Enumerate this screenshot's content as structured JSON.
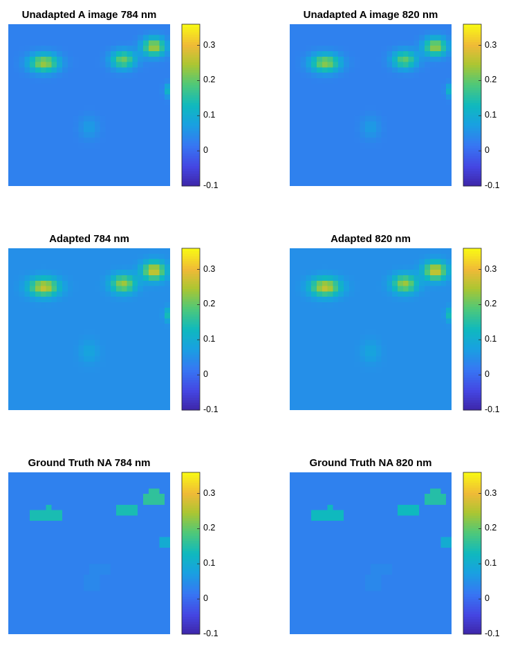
{
  "chart_data": [
    {
      "type": "heatmap",
      "title": "Unadapted A image 784 nm",
      "colormap": "parula",
      "clim": [
        -0.1,
        0.36
      ],
      "colorbar_ticks": [
        "0.3",
        "0.2",
        "0.1",
        "0",
        "-0.1"
      ],
      "background_value": 0.03,
      "blobs": [
        {
          "shape": "gauss",
          "x": 0.22,
          "y": 0.24,
          "sx": 0.09,
          "sy": 0.055,
          "value": 0.21
        },
        {
          "shape": "gauss",
          "x": 0.71,
          "y": 0.22,
          "sx": 0.075,
          "sy": 0.055,
          "value": 0.18
        },
        {
          "shape": "gauss",
          "x": 0.9,
          "y": 0.14,
          "sx": 0.07,
          "sy": 0.055,
          "value": 0.22
        },
        {
          "shape": "gauss",
          "x": 0.5,
          "y": 0.64,
          "sx": 0.06,
          "sy": 0.07,
          "value": 0.04
        },
        {
          "shape": "gauss",
          "x": 0.98,
          "y": 0.41,
          "sx": 0.02,
          "sy": 0.04,
          "value": 0.09
        }
      ]
    },
    {
      "type": "heatmap",
      "title": "Unadapted A image 820 nm",
      "colormap": "parula",
      "clim": [
        -0.1,
        0.36
      ],
      "colorbar_ticks": [
        "0.3",
        "0.2",
        "0.1",
        "0",
        "-0.1"
      ],
      "background_value": 0.03,
      "blobs": [
        {
          "shape": "gauss",
          "x": 0.22,
          "y": 0.24,
          "sx": 0.09,
          "sy": 0.055,
          "value": 0.2
        },
        {
          "shape": "gauss",
          "x": 0.71,
          "y": 0.22,
          "sx": 0.075,
          "sy": 0.055,
          "value": 0.17
        },
        {
          "shape": "gauss",
          "x": 0.9,
          "y": 0.14,
          "sx": 0.07,
          "sy": 0.055,
          "value": 0.21
        },
        {
          "shape": "gauss",
          "x": 0.5,
          "y": 0.64,
          "sx": 0.06,
          "sy": 0.07,
          "value": 0.04
        },
        {
          "shape": "gauss",
          "x": 0.98,
          "y": 0.41,
          "sx": 0.02,
          "sy": 0.04,
          "value": 0.09
        }
      ]
    },
    {
      "type": "heatmap",
      "title": "Adapted 784 nm",
      "colormap": "parula",
      "clim": [
        -0.1,
        0.36
      ],
      "colorbar_ticks": [
        "0.3",
        "0.2",
        "0.1",
        "0",
        "-0.1"
      ],
      "background_value": 0.05,
      "blobs": [
        {
          "shape": "gauss",
          "x": 0.22,
          "y": 0.24,
          "sx": 0.09,
          "sy": 0.055,
          "value": 0.22
        },
        {
          "shape": "gauss",
          "x": 0.71,
          "y": 0.22,
          "sx": 0.075,
          "sy": 0.055,
          "value": 0.19
        },
        {
          "shape": "gauss",
          "x": 0.9,
          "y": 0.14,
          "sx": 0.07,
          "sy": 0.055,
          "value": 0.23
        },
        {
          "shape": "gauss",
          "x": 0.5,
          "y": 0.64,
          "sx": 0.06,
          "sy": 0.07,
          "value": 0.035
        },
        {
          "shape": "gauss",
          "x": 0.98,
          "y": 0.41,
          "sx": 0.02,
          "sy": 0.04,
          "value": 0.09
        }
      ]
    },
    {
      "type": "heatmap",
      "title": "Adapted 820 nm",
      "colormap": "parula",
      "clim": [
        -0.1,
        0.36
      ],
      "colorbar_ticks": [
        "0.3",
        "0.2",
        "0.1",
        "0",
        "-0.1"
      ],
      "background_value": 0.05,
      "blobs": [
        {
          "shape": "gauss",
          "x": 0.22,
          "y": 0.24,
          "sx": 0.09,
          "sy": 0.055,
          "value": 0.22
        },
        {
          "shape": "gauss",
          "x": 0.71,
          "y": 0.22,
          "sx": 0.075,
          "sy": 0.055,
          "value": 0.19
        },
        {
          "shape": "gauss",
          "x": 0.9,
          "y": 0.14,
          "sx": 0.07,
          "sy": 0.055,
          "value": 0.23
        },
        {
          "shape": "gauss",
          "x": 0.5,
          "y": 0.64,
          "sx": 0.06,
          "sy": 0.07,
          "value": 0.035
        },
        {
          "shape": "gauss",
          "x": 0.98,
          "y": 0.41,
          "sx": 0.02,
          "sy": 0.04,
          "value": 0.09
        }
      ]
    },
    {
      "type": "heatmap",
      "title": "Ground Truth NA 784 nm",
      "colormap": "parula",
      "clim": [
        -0.1,
        0.36
      ],
      "colorbar_ticks": [
        "0.3",
        "0.2",
        "0.1",
        "0",
        "-0.1"
      ],
      "background_value": 0.03,
      "blobs": [
        {
          "shape": "rect",
          "x0": 0.13,
          "y0": 0.24,
          "x1": 0.33,
          "y1": 0.31,
          "value": 0.14
        },
        {
          "shape": "rect",
          "x0": 0.22,
          "y0": 0.19,
          "x1": 0.28,
          "y1": 0.24,
          "value": 0.14
        },
        {
          "shape": "rect",
          "x0": 0.66,
          "y0": 0.2,
          "x1": 0.81,
          "y1": 0.27,
          "value": 0.14
        },
        {
          "shape": "rect",
          "x0": 0.84,
          "y0": 0.15,
          "x1": 0.98,
          "y1": 0.2,
          "value": 0.16
        },
        {
          "shape": "rect",
          "x0": 0.87,
          "y0": 0.1,
          "x1": 0.92,
          "y1": 0.15,
          "value": 0.16
        },
        {
          "shape": "rect",
          "x0": 0.93,
          "y0": 0.39,
          "x1": 1.0,
          "y1": 0.46,
          "value": 0.1
        },
        {
          "shape": "rect",
          "x0": 0.46,
          "y0": 0.63,
          "x1": 0.58,
          "y1": 0.72,
          "value": 0.04
        },
        {
          "shape": "rect",
          "x0": 0.5,
          "y0": 0.57,
          "x1": 0.63,
          "y1": 0.63,
          "value": 0.04
        },
        {
          "shape": "rect",
          "x0": 0.17,
          "y0": 0.93,
          "x1": 0.24,
          "y1": 1.0,
          "value": 0.02
        }
      ]
    },
    {
      "type": "heatmap",
      "title": "Ground Truth NA 820 nm",
      "colormap": "parula",
      "clim": [
        -0.1,
        0.36
      ],
      "colorbar_ticks": [
        "0.3",
        "0.2",
        "0.1",
        "0",
        "-0.1"
      ],
      "background_value": 0.03,
      "blobs": [
        {
          "shape": "rect",
          "x0": 0.13,
          "y0": 0.24,
          "x1": 0.33,
          "y1": 0.31,
          "value": 0.13
        },
        {
          "shape": "rect",
          "x0": 0.22,
          "y0": 0.19,
          "x1": 0.28,
          "y1": 0.24,
          "value": 0.13
        },
        {
          "shape": "rect",
          "x0": 0.66,
          "y0": 0.2,
          "x1": 0.81,
          "y1": 0.27,
          "value": 0.13
        },
        {
          "shape": "rect",
          "x0": 0.84,
          "y0": 0.15,
          "x1": 0.98,
          "y1": 0.2,
          "value": 0.15
        },
        {
          "shape": "rect",
          "x0": 0.87,
          "y0": 0.1,
          "x1": 0.92,
          "y1": 0.15,
          "value": 0.15
        },
        {
          "shape": "rect",
          "x0": 0.93,
          "y0": 0.39,
          "x1": 1.0,
          "y1": 0.46,
          "value": 0.1
        },
        {
          "shape": "rect",
          "x0": 0.46,
          "y0": 0.63,
          "x1": 0.58,
          "y1": 0.72,
          "value": 0.04
        },
        {
          "shape": "rect",
          "x0": 0.5,
          "y0": 0.57,
          "x1": 0.63,
          "y1": 0.63,
          "value": 0.04
        }
      ]
    }
  ]
}
